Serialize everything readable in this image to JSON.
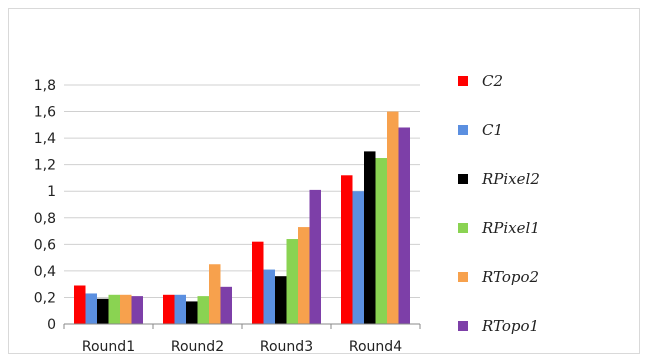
{
  "chart_data": {
    "type": "bar",
    "categories": [
      "Round1",
      "Round2",
      "Round3",
      "Round4"
    ],
    "series": [
      {
        "name": "C2",
        "color": "#ff0000",
        "values": [
          0.29,
          0.22,
          0.62,
          1.12
        ]
      },
      {
        "name": "C1",
        "color": "#5b8fe0",
        "values": [
          0.23,
          0.22,
          0.41,
          1.0
        ]
      },
      {
        "name": "RPixel2",
        "color": "#000000",
        "values": [
          0.19,
          0.17,
          0.36,
          1.3
        ]
      },
      {
        "name": "RPixel1",
        "color": "#8ad352",
        "values": [
          0.22,
          0.21,
          0.64,
          1.25
        ]
      },
      {
        "name": "RTopo2",
        "color": "#f7a14d",
        "values": [
          0.22,
          0.45,
          0.73,
          1.6
        ]
      },
      {
        "name": "RTopo1",
        "color": "#7d3fa8",
        "values": [
          0.21,
          0.28,
          1.01,
          1.48
        ]
      }
    ],
    "yticks": [
      "0",
      "0,2",
      "0,4",
      "0,6",
      "0,8",
      "1",
      "1,2",
      "1,4",
      "1,6",
      "1,8"
    ],
    "ylim": [
      0,
      1.8
    ],
    "grid": true,
    "legend": "right",
    "title": "",
    "xlabel": "",
    "ylabel": ""
  }
}
